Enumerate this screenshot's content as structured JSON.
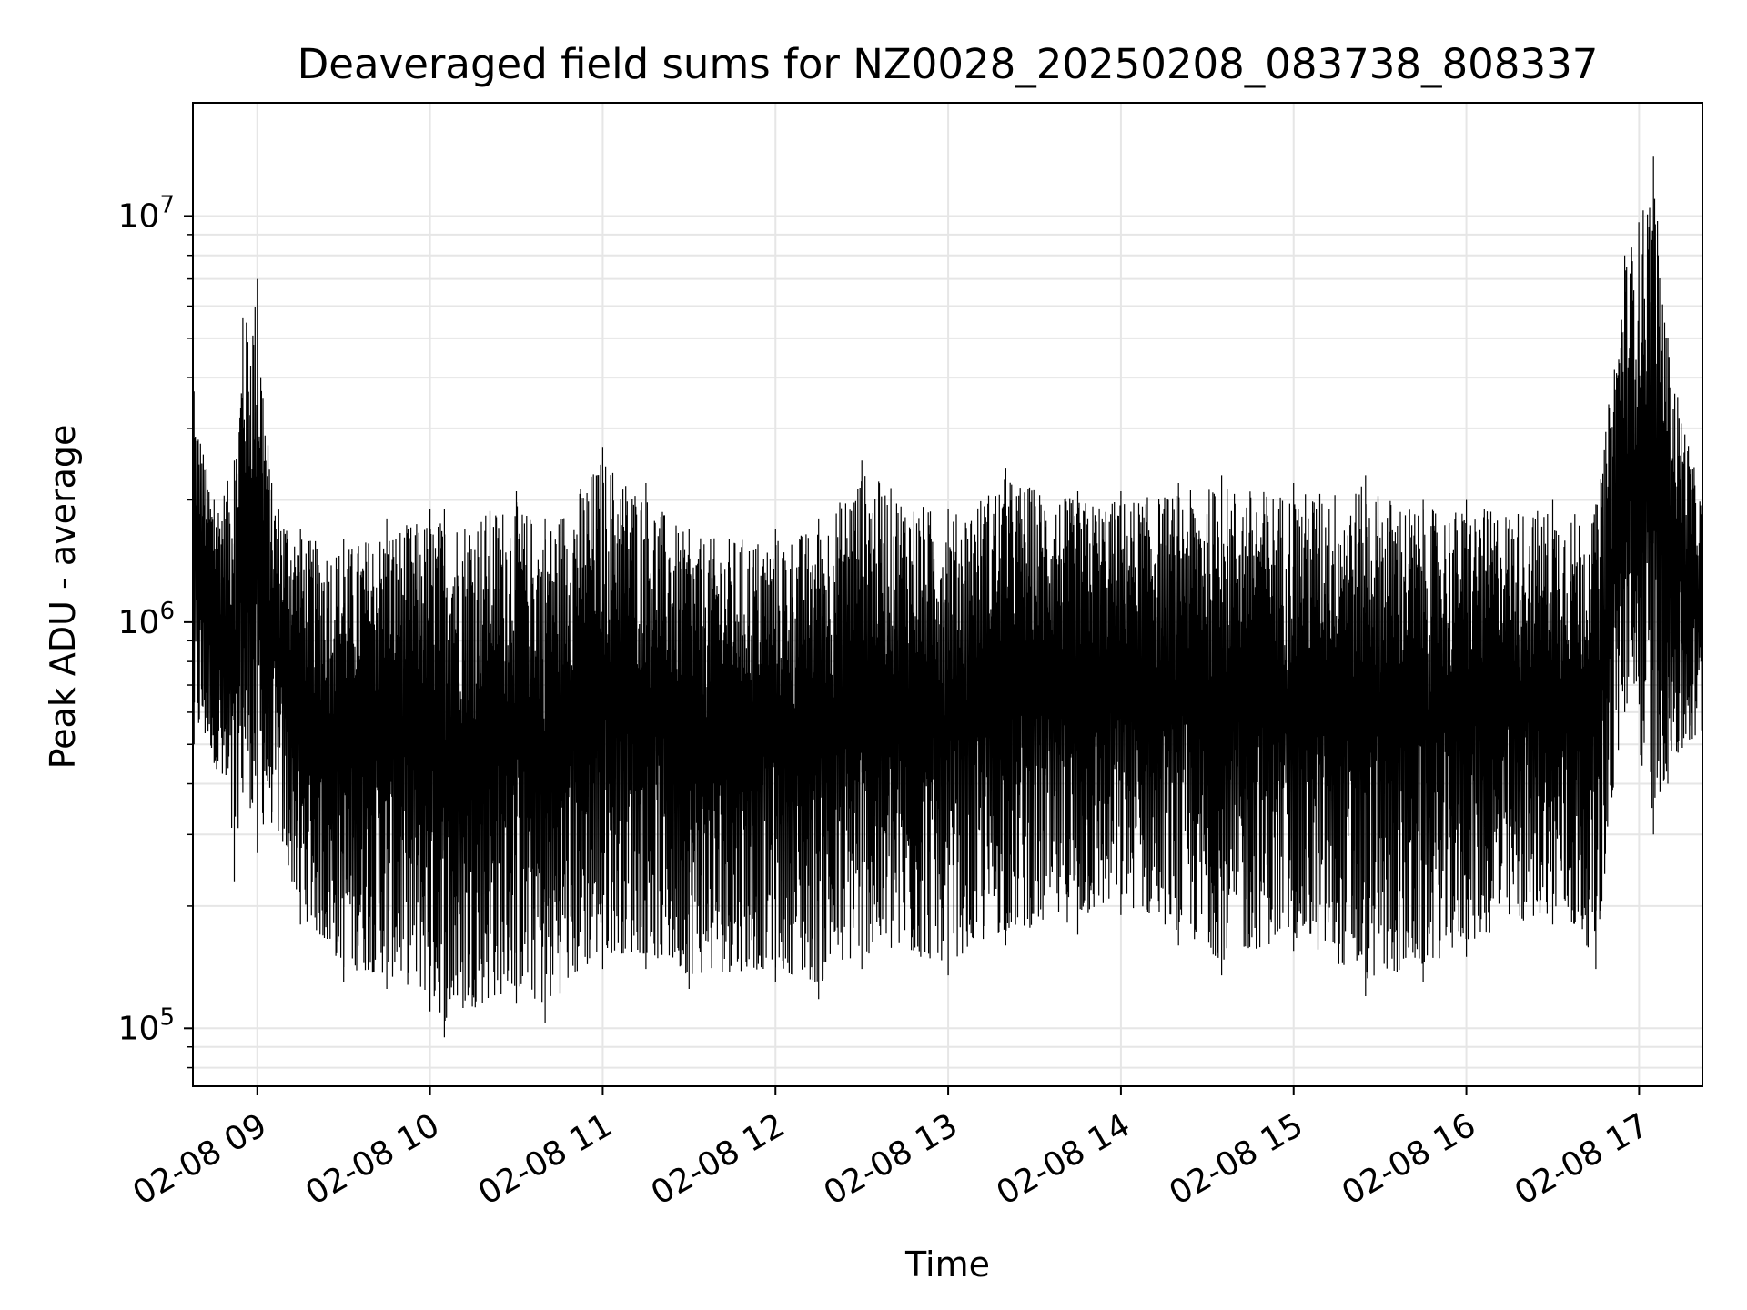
{
  "chart_data": {
    "type": "line",
    "title": "Deaveraged field sums for NZ0028_20250208_083738_808337",
    "xlabel": "Time",
    "ylabel": "Peak ADU - average",
    "yscale": "log",
    "grid": true,
    "legend": "none",
    "x_range": [
      "2025-02-08 08:37:38",
      "2025-02-08 17:22:00"
    ],
    "ylim": [
      72000,
      19000000
    ],
    "x_ticks": [
      {
        "time": "2025-02-08 09:00",
        "label": "02-08 09"
      },
      {
        "time": "2025-02-08 10:00",
        "label": "02-08 10"
      },
      {
        "time": "2025-02-08 11:00",
        "label": "02-08 11"
      },
      {
        "time": "2025-02-08 12:00",
        "label": "02-08 12"
      },
      {
        "time": "2025-02-08 13:00",
        "label": "02-08 13"
      },
      {
        "time": "2025-02-08 14:00",
        "label": "02-08 14"
      },
      {
        "time": "2025-02-08 15:00",
        "label": "02-08 15"
      },
      {
        "time": "2025-02-08 16:00",
        "label": "02-08 16"
      },
      {
        "time": "2025-02-08 17:00",
        "label": "02-08 17"
      }
    ],
    "y_ticks": [
      {
        "value": 100000,
        "base": "10",
        "exp": "5"
      },
      {
        "value": 1000000,
        "base": "10",
        "exp": "6"
      },
      {
        "value": 10000000,
        "base": "10",
        "exp": "7"
      }
    ],
    "series": [
      {
        "color": "#000000",
        "envelope": [
          {
            "time": "2025-02-08 08:38",
            "low": 500000,
            "high": 3700000
          },
          {
            "time": "2025-02-08 08:45",
            "low": 450000,
            "high": 2000000
          },
          {
            "time": "2025-02-08 08:52",
            "low": 230000,
            "high": 2500000
          },
          {
            "time": "2025-02-08 08:55",
            "low": 380000,
            "high": 5600000
          },
          {
            "time": "2025-02-08 09:00",
            "low": 270000,
            "high": 7000000
          },
          {
            "time": "2025-02-08 09:05",
            "low": 320000,
            "high": 2200000
          },
          {
            "time": "2025-02-08 09:15",
            "low": 180000,
            "high": 1700000
          },
          {
            "time": "2025-02-08 09:30",
            "low": 130000,
            "high": 1600000
          },
          {
            "time": "2025-02-08 09:45",
            "low": 125000,
            "high": 1800000
          },
          {
            "time": "2025-02-08 10:00",
            "low": 110000,
            "high": 1900000
          },
          {
            "time": "2025-02-08 10:05",
            "low": 95000,
            "high": 1900000
          },
          {
            "time": "2025-02-08 10:30",
            "low": 115000,
            "high": 2100000
          },
          {
            "time": "2025-02-08 10:40",
            "low": 103000,
            "high": 1800000
          },
          {
            "time": "2025-02-08 11:00",
            "low": 140000,
            "high": 2700000
          },
          {
            "time": "2025-02-08 11:15",
            "low": 140000,
            "high": 2200000
          },
          {
            "time": "2025-02-08 11:30",
            "low": 125000,
            "high": 1700000
          },
          {
            "time": "2025-02-08 12:00",
            "low": 130000,
            "high": 1700000
          },
          {
            "time": "2025-02-08 12:15",
            "low": 118000,
            "high": 1800000
          },
          {
            "time": "2025-02-08 12:30",
            "low": 140000,
            "high": 2500000
          },
          {
            "time": "2025-02-08 13:00",
            "low": 135000,
            "high": 1900000
          },
          {
            "time": "2025-02-08 13:20",
            "low": 160000,
            "high": 2400000
          },
          {
            "time": "2025-02-08 13:45",
            "low": 170000,
            "high": 2100000
          },
          {
            "time": "2025-02-08 14:00",
            "low": 190000,
            "high": 2100000
          },
          {
            "time": "2025-02-08 14:20",
            "low": 160000,
            "high": 2200000
          },
          {
            "time": "2025-02-08 14:35",
            "low": 135000,
            "high": 2300000
          },
          {
            "time": "2025-02-08 15:00",
            "low": 155000,
            "high": 2200000
          },
          {
            "time": "2025-02-08 15:25",
            "low": 120000,
            "high": 2300000
          },
          {
            "time": "2025-02-08 15:45",
            "low": 130000,
            "high": 2000000
          },
          {
            "time": "2025-02-08 16:00",
            "low": 150000,
            "high": 2000000
          },
          {
            "time": "2025-02-08 16:30",
            "low": 180000,
            "high": 2000000
          },
          {
            "time": "2025-02-08 16:45",
            "low": 140000,
            "high": 1950000
          },
          {
            "time": "2025-02-08 16:55",
            "low": 600000,
            "high": 8000000
          },
          {
            "time": "2025-02-08 17:05",
            "low": 300000,
            "high": 14000000
          },
          {
            "time": "2025-02-08 17:10",
            "low": 400000,
            "high": 5000000
          },
          {
            "time": "2025-02-08 17:22",
            "low": 500000,
            "high": 2000000
          }
        ]
      }
    ]
  }
}
